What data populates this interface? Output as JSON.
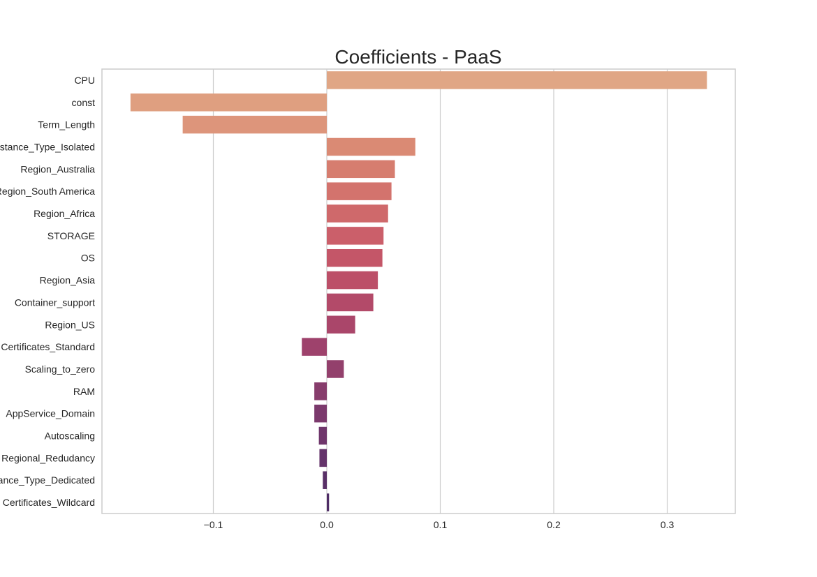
{
  "chart_data": {
    "type": "bar",
    "orientation": "horizontal",
    "title": "Coefficients - PaaS",
    "xlabel": "",
    "ylabel": "",
    "xlim": [
      -0.2,
      0.36
    ],
    "xticks": [
      -0.1,
      0.0,
      0.1,
      0.2,
      0.3
    ],
    "xtick_labels": [
      "−0.1",
      "0.0",
      "0.1",
      "0.2",
      "0.3"
    ],
    "grid": "vertical",
    "categories": [
      "CPU",
      "const",
      "Term_Length",
      "Instance_Type_Isolated",
      "Region_Australia",
      "Region_South America",
      "Region_Africa",
      "STORAGE",
      "OS",
      "Region_Asia",
      "Container_support",
      "Region_US",
      "Certificates_Standard",
      "Scaling_to_zero",
      "RAM",
      "AppService_Domain",
      "Autoscaling",
      "Regional_Redudancy",
      "Instance_Type_Dedicated",
      "Certificates_Wildcard"
    ],
    "values": [
      0.335,
      -0.173,
      -0.127,
      0.078,
      0.06,
      0.057,
      0.054,
      0.05,
      0.049,
      0.045,
      0.041,
      0.025,
      -0.022,
      0.015,
      -0.011,
      -0.011,
      -0.007,
      -0.0065,
      -0.0035,
      0.002
    ],
    "colors": [
      "#e0a685",
      "#df9f80",
      "#dd957b",
      "#da8a74",
      "#d67d6f",
      "#d3736d",
      "#cf696b",
      "#cb5f6a",
      "#c45668",
      "#bc4f68",
      "#b34a69",
      "#aa466a",
      "#9e426c",
      "#93406c",
      "#873d6c",
      "#7b396c",
      "#6f366b",
      "#64336a",
      "#593067",
      "#4e2c65"
    ]
  }
}
